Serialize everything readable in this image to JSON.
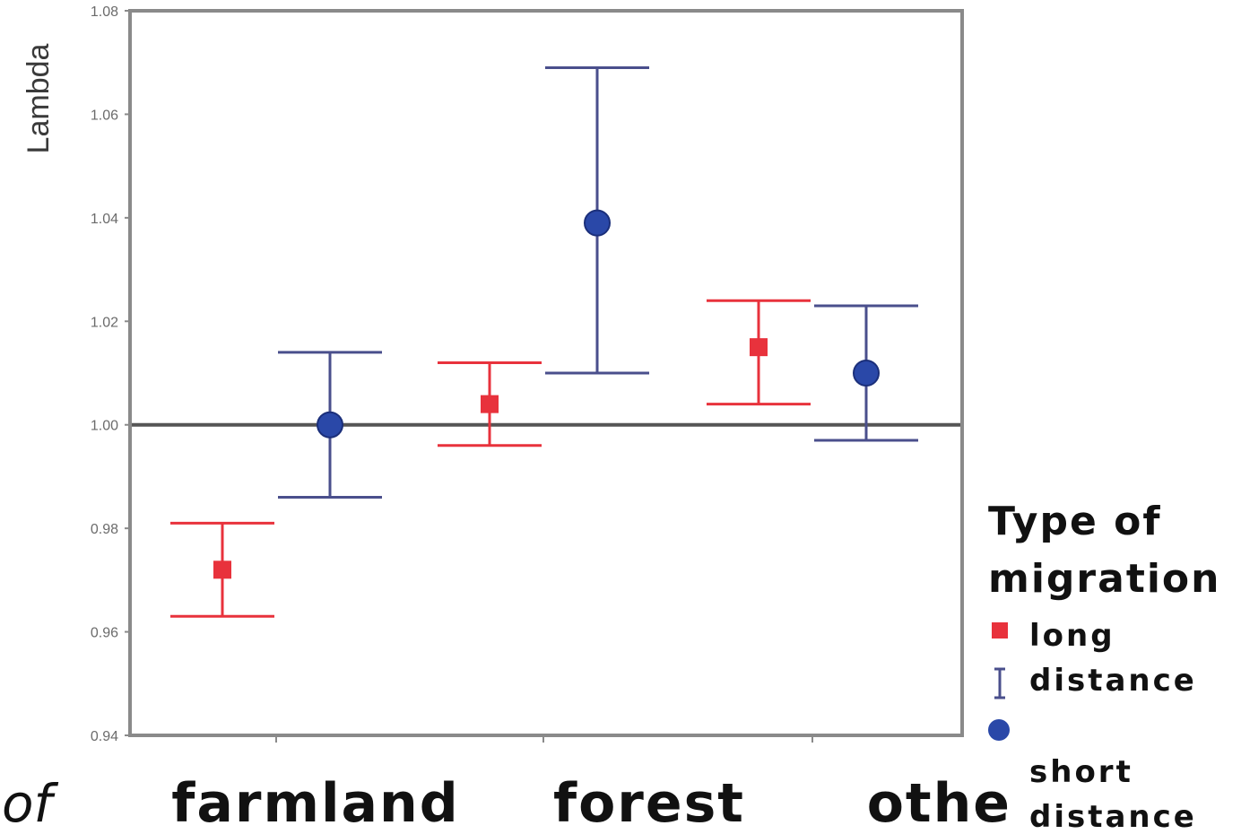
{
  "chart_data": {
    "type": "scatter",
    "ylabel": "Lambda",
    "ylim": [
      0.94,
      1.08
    ],
    "yticks": [
      "0.94",
      "0.96",
      "0.98",
      "1.00",
      "1.02",
      "1.04",
      "1.06",
      "1.08"
    ],
    "reference_line": 1.0,
    "categories": [
      "farmland",
      "forest",
      "othe"
    ],
    "cut_off_label": "of",
    "series": [
      {
        "name": "long distance",
        "color": "#e8323c",
        "marker": "square",
        "points": [
          {
            "category": "farmland",
            "value": 0.972,
            "low": 0.963,
            "high": 0.981
          },
          {
            "category": "forest",
            "value": 1.004,
            "low": 0.996,
            "high": 1.012
          },
          {
            "category": "othe",
            "value": 1.015,
            "low": 1.004,
            "high": 1.024
          }
        ]
      },
      {
        "name": "short distance",
        "color": "#2a48a8",
        "marker": "circle",
        "points": [
          {
            "category": "farmland",
            "value": 1.0,
            "low": 0.986,
            "high": 1.014
          },
          {
            "category": "forest",
            "value": 1.039,
            "low": 1.01,
            "high": 1.069
          },
          {
            "category": "othe",
            "value": 1.01,
            "low": 0.997,
            "high": 1.023
          }
        ]
      }
    ],
    "errorbar_color": "#4a4f8c",
    "legend": {
      "title_line1": "Type of",
      "title_line2": "migration",
      "items": [
        {
          "line1": "long",
          "line2": "distance"
        },
        {
          "line1": "short",
          "line2": "distance"
        }
      ]
    }
  }
}
